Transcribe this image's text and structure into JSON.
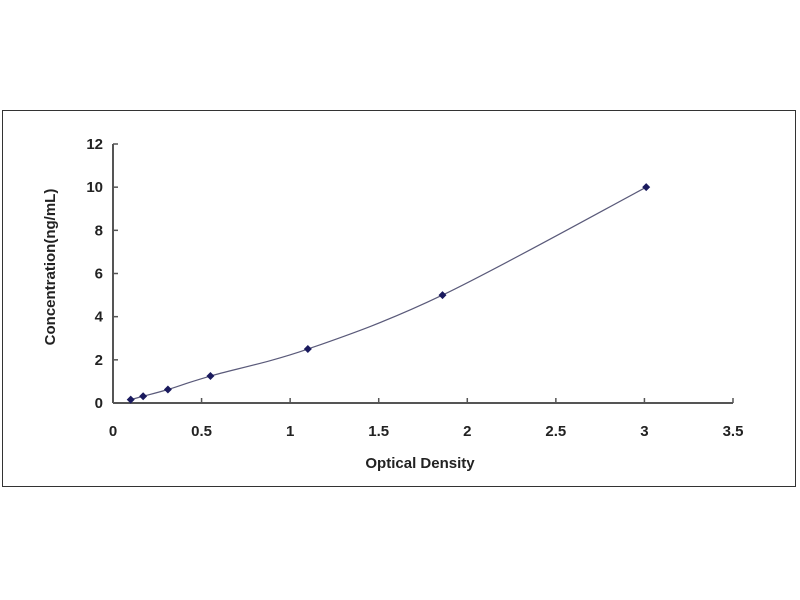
{
  "chart_data": {
    "type": "scatter",
    "title": "",
    "xlabel": "Optical Density",
    "ylabel": "Concentration(ng/mL)",
    "xlim": [
      0,
      3.5
    ],
    "ylim": [
      0,
      12
    ],
    "xticks": [
      "0",
      "0.5",
      "1",
      "1.5",
      "2",
      "2.5",
      "3",
      "3.5"
    ],
    "yticks": [
      "0",
      "2",
      "4",
      "6",
      "8",
      "10",
      "12"
    ],
    "grid": false,
    "legend": "none",
    "series": [
      {
        "x": [
          0.1,
          0.17,
          0.31,
          0.55,
          1.1,
          1.86,
          3.01
        ],
        "y": [
          0.156,
          0.312,
          0.625,
          1.25,
          2.5,
          5,
          10
        ],
        "marker": "diamond",
        "color": "#1a1a5e",
        "trendline": "smooth curve"
      }
    ]
  }
}
